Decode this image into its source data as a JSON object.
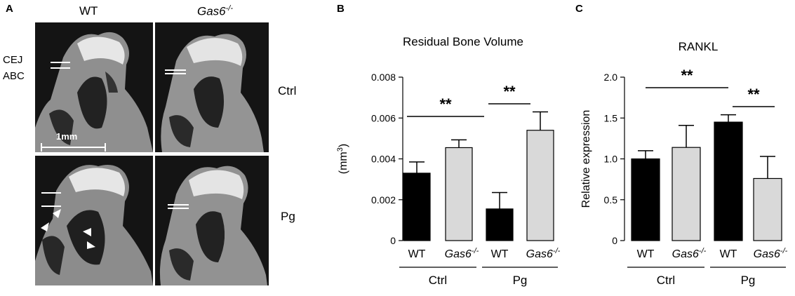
{
  "panel_a": {
    "letter": "A",
    "col_wt": "WT",
    "col_ko_base": "Gas6",
    "col_ko_sup": "-/-",
    "row_ctrl": "Ctrl",
    "row_pg": "Pg",
    "cej": "CEJ",
    "abc": "ABC",
    "scale": "1mm"
  },
  "chart_data": [
    {
      "panel": "B",
      "type": "bar",
      "title": "Residual Bone Volume",
      "ylabel_base": "(mm",
      "ylabel_sup": "3",
      "ylabel_end": ")",
      "categories": [
        "WT",
        "Gas6-/-",
        "WT",
        "Gas6-/-"
      ],
      "groups": [
        "Ctrl",
        "Pg"
      ],
      "values": [
        0.0033,
        0.00455,
        0.00155,
        0.0054
      ],
      "errors": [
        0.00055,
        0.00038,
        0.0008,
        0.0009
      ],
      "bar_colors": [
        "#000000",
        "#d9d9d9",
        "#000000",
        "#d9d9d9"
      ],
      "ylim": [
        0,
        0.008
      ],
      "yticks": [
        "0",
        "0.002",
        "0.004",
        "0.006",
        "0.008"
      ],
      "significance": [
        "**",
        "**"
      ]
    },
    {
      "panel": "C",
      "type": "bar",
      "title": "RANKL",
      "ylabel": "Relative expression",
      "categories": [
        "WT",
        "Gas6-/-",
        "WT",
        "Gas6-/-"
      ],
      "groups": [
        "Ctrl",
        "Pg"
      ],
      "values": [
        1.0,
        1.14,
        1.45,
        0.76
      ],
      "errors": [
        0.1,
        0.27,
        0.09,
        0.27
      ],
      "bar_colors": [
        "#000000",
        "#d9d9d9",
        "#000000",
        "#d9d9d9"
      ],
      "ylim": [
        0,
        2.0
      ],
      "yticks": [
        "0",
        "0.5",
        "1.0",
        "1.5",
        "2.0"
      ],
      "significance": [
        "**",
        "**"
      ]
    }
  ]
}
